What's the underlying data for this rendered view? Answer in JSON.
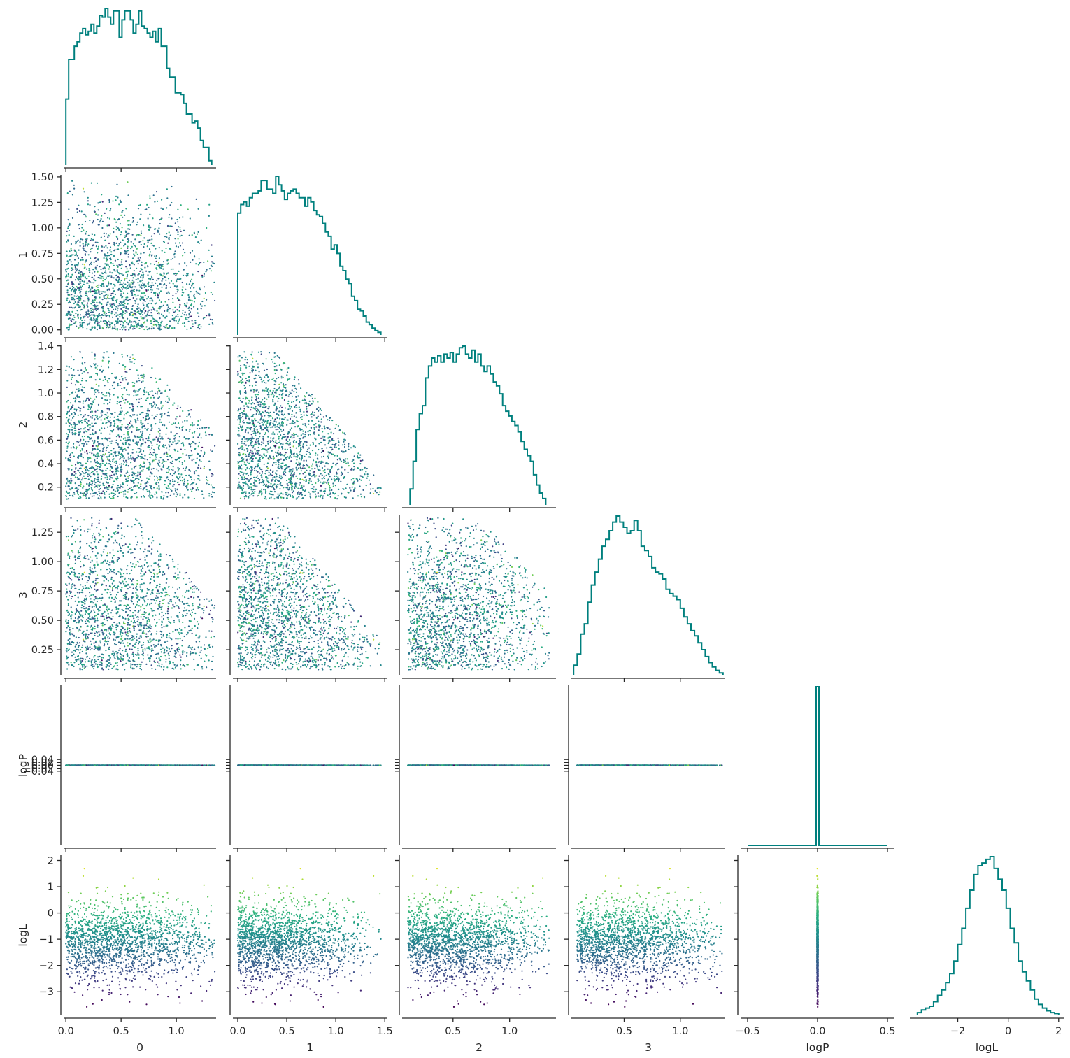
{
  "chart_data": {
    "type": "corner-plot",
    "description_of_grid": "lower-triangle pair plot: histograms on diagonal, scatter below",
    "colormap": "viridis",
    "color_by": "logL",
    "histogram_color": "#00807e",
    "variables": [
      "0",
      "1",
      "2",
      "3",
      "logP",
      "logL"
    ],
    "axis_labels": {
      "x": [
        "0",
        "1",
        "2",
        "3",
        "logP",
        "logL"
      ],
      "y": [
        "",
        "1",
        "2",
        "3",
        "logP",
        "logL"
      ]
    },
    "x_ticks": [
      [
        "0.0",
        "0.5",
        "1.0"
      ],
      [
        "0.0",
        "0.5",
        "1.0",
        "1.5"
      ],
      [
        "0.5",
        "1.0"
      ],
      [
        "0.5",
        "1.0"
      ],
      [
        "−0.5",
        "0.0",
        "0.5"
      ],
      [
        "−2",
        "0",
        "2"
      ]
    ],
    "y_ticks": {
      "1": [
        "0.00",
        "0.25",
        "0.50",
        "0.75",
        "1.00",
        "1.25",
        "1.50"
      ],
      "2": [
        "0.2",
        "0.4",
        "0.6",
        "0.8",
        "1.0",
        "1.2",
        "1.4"
      ],
      "3": [
        "0.25",
        "0.50",
        "0.75",
        "1.00",
        "1.25"
      ],
      "logP": [
        "−0.04",
        "−0.02",
        "0.00",
        "0.02",
        "0.04"
      ],
      "logL": [
        "−3",
        "−2",
        "−1",
        "0",
        "1",
        "2"
      ]
    },
    "ranges": {
      "0": [
        -0.02,
        1.36
      ],
      "1": [
        -0.05,
        1.52
      ],
      "2": [
        0.05,
        1.41
      ],
      "3": [
        0.03,
        1.4
      ],
      "logP": [
        -0.55,
        0.55
      ],
      "logL": [
        -3.9,
        2.2
      ]
    },
    "histograms": {
      "0": {
        "bins": [
          0.0,
          1.32
        ],
        "counts": [
          75,
          120,
          120,
          135,
          140,
          150,
          155,
          148,
          152,
          160,
          150,
          158,
          170,
          168,
          178,
          168,
          160,
          175,
          175,
          145,
          165,
          175,
          175,
          165,
          150,
          160,
          175,
          158,
          155,
          150,
          145,
          152,
          140,
          155,
          135,
          135,
          110,
          100,
          100,
          82,
          82,
          80,
          70,
          58,
          58,
          48,
          50,
          42,
          28,
          20,
          20,
          5
        ]
      },
      "1": {
        "bins": [
          0.0,
          1.46
        ],
        "counts": [
          142,
          152,
          155,
          150,
          160,
          165,
          165,
          168,
          180,
          180,
          170,
          170,
          165,
          185,
          175,
          168,
          158,
          165,
          168,
          170,
          165,
          160,
          160,
          150,
          160,
          155,
          145,
          140,
          138,
          130,
          120,
          115,
          100,
          105,
          95,
          80,
          75,
          65,
          60,
          45,
          40,
          30,
          28,
          22,
          15,
          12,
          8,
          5,
          3
        ]
      },
      "2": {
        "bins": [
          0.12,
          1.32
        ],
        "counts": [
          20,
          55,
          95,
          115,
          125,
          160,
          175,
          185,
          180,
          188,
          180,
          190,
          185,
          192,
          180,
          190,
          198,
          200,
          190,
          185,
          195,
          180,
          190,
          175,
          168,
          175,
          165,
          155,
          150,
          140,
          125,
          118,
          112,
          105,
          100,
          92,
          80,
          70,
          62,
          55,
          38,
          25,
          15,
          8
        ]
      },
      "3": {
        "bins": [
          0.05,
          1.38
        ],
        "counts": [
          12,
          25,
          48,
          60,
          85,
          105,
          120,
          135,
          150,
          158,
          168,
          178,
          185,
          178,
          172,
          165,
          168,
          180,
          168,
          150,
          145,
          138,
          125,
          120,
          118,
          112,
          100,
          95,
          92,
          88,
          78,
          68,
          60,
          52,
          46,
          38,
          30,
          22,
          15,
          10,
          6,
          3
        ]
      },
      "logP": {
        "bins": [
          -0.5,
          0.5
        ],
        "spike_at": 0.0
      },
      "logL": {
        "bins": [
          -3.6,
          2.0
        ],
        "counts": [
          3,
          6,
          8,
          10,
          15,
          22,
          28,
          36,
          46,
          60,
          78,
          96,
          118,
          138,
          155,
          165,
          168,
          172,
          175,
          162,
          150,
          138,
          118,
          96,
          80,
          60,
          48,
          38,
          28,
          18,
          12,
          8,
          5,
          3,
          2
        ]
      }
    }
  }
}
